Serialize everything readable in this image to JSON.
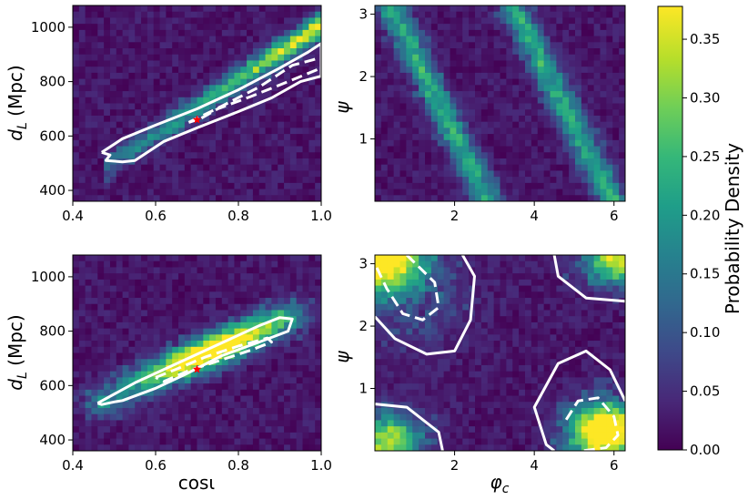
{
  "colors": {
    "background": "#440154",
    "contour": "#ffffff",
    "injection_marker": "#ff0000",
    "colormap": [
      "#440154",
      "#482878",
      "#3e4989",
      "#31688e",
      "#26828e",
      "#1f9e89",
      "#35b779",
      "#6ece58",
      "#b5de2b",
      "#fde725"
    ]
  },
  "chart_data": [
    {
      "id": "dl_vs_cosi_top",
      "type": "heatmap",
      "xlabel": "",
      "ylabel": "d_L (Mpc)",
      "xlim": [
        0.4,
        1.0
      ],
      "ylim": [
        360,
        1080
      ],
      "xticks": [
        "0.4",
        "0.6",
        "0.8",
        "1.0"
      ],
      "xtick_values": [
        0.4,
        0.6,
        0.8,
        1.0
      ],
      "yticks": [
        "400",
        "600",
        "800",
        "1000"
      ],
      "ytick_values": [
        400,
        600,
        800,
        1000
      ],
      "marker": {
        "x": 0.7,
        "y": 660
      },
      "contours": [
        {
          "style": "solid",
          "points": [
            [
              0.47,
              540
            ],
            [
              0.52,
              590
            ],
            [
              0.6,
              640
            ],
            [
              0.7,
              700
            ],
            [
              0.8,
              770
            ],
            [
              0.9,
              850
            ],
            [
              0.97,
              910
            ],
            [
              1.0,
              940
            ],
            [
              1.0,
              820
            ],
            [
              0.95,
              800
            ],
            [
              0.88,
              740
            ],
            [
              0.8,
              690
            ],
            [
              0.7,
              630
            ],
            [
              0.62,
              580
            ],
            [
              0.55,
              510
            ],
            [
              0.52,
              505
            ],
            [
              0.48,
              510
            ],
            [
              0.49,
              530
            ],
            [
              0.47,
              540
            ]
          ]
        },
        {
          "style": "dashed",
          "points": [
            [
              0.68,
              650
            ],
            [
              0.76,
              710
            ],
            [
              0.85,
              780
            ],
            [
              0.93,
              860
            ],
            [
              0.98,
              880
            ],
            [
              1.0,
              890
            ],
            [
              1.0,
              850
            ],
            [
              0.92,
              800
            ],
            [
              0.83,
              745
            ],
            [
              0.75,
              700
            ],
            [
              0.71,
              665
            ],
            [
              0.68,
              650
            ]
          ]
        }
      ]
    },
    {
      "id": "psi_vs_phic_top",
      "type": "heatmap",
      "xlabel": "",
      "ylabel": "ψ",
      "xlim": [
        0.0,
        6.28
      ],
      "ylim": [
        0.0,
        3.14
      ],
      "xticks": [
        "2",
        "4",
        "6"
      ],
      "xtick_values": [
        2,
        4,
        6
      ],
      "yticks": [
        "1",
        "2",
        "3"
      ],
      "ytick_values": [
        1,
        2,
        3
      ],
      "contours": []
    },
    {
      "id": "dl_vs_cosi_bottom",
      "type": "heatmap",
      "xlabel": "cosι",
      "ylabel": "d_L (Mpc)",
      "xlim": [
        0.4,
        1.0
      ],
      "ylim": [
        360,
        1080
      ],
      "xticks": [
        "0.4",
        "0.6",
        "0.8",
        "1.0"
      ],
      "xtick_values": [
        0.4,
        0.6,
        0.8,
        1.0
      ],
      "yticks": [
        "400",
        "600",
        "800",
        "1000"
      ],
      "ytick_values": [
        400,
        600,
        800,
        1000
      ],
      "marker": {
        "x": 0.7,
        "y": 660
      },
      "contours": [
        {
          "style": "solid",
          "points": [
            [
              0.46,
              535
            ],
            [
              0.55,
              610
            ],
            [
              0.65,
              680
            ],
            [
              0.75,
              750
            ],
            [
              0.85,
              820
            ],
            [
              0.9,
              850
            ],
            [
              0.93,
              845
            ],
            [
              0.92,
              800
            ],
            [
              0.85,
              760
            ],
            [
              0.76,
              710
            ],
            [
              0.67,
              640
            ],
            [
              0.6,
              590
            ],
            [
              0.52,
              545
            ],
            [
              0.5,
              540
            ],
            [
              0.47,
              530
            ],
            [
              0.46,
              535
            ]
          ]
        },
        {
          "style": "dashed",
          "points": [
            [
              0.6,
              630
            ],
            [
              0.65,
              660
            ],
            [
              0.72,
              705
            ],
            [
              0.8,
              745
            ],
            [
              0.87,
              775
            ],
            [
              0.88,
              760
            ],
            [
              0.83,
              730
            ],
            [
              0.75,
              690
            ],
            [
              0.68,
              655
            ],
            [
              0.62,
              615
            ],
            [
              0.6,
              630
            ]
          ]
        }
      ]
    },
    {
      "id": "psi_vs_phic_bottom",
      "type": "heatmap",
      "xlabel": "φ_c",
      "ylabel": "ψ",
      "xlim": [
        0.0,
        6.28
      ],
      "ylim": [
        0.0,
        3.14
      ],
      "xticks": [
        "2",
        "4",
        "6"
      ],
      "xtick_values": [
        2,
        4,
        6
      ],
      "yticks": [
        "1",
        "2",
        "3"
      ],
      "ytick_values": [
        1,
        2,
        3
      ],
      "contours": [
        {
          "style": "solid",
          "points": [
            [
              0.0,
              2.15
            ],
            [
              0.5,
              1.8
            ],
            [
              1.3,
              1.55
            ],
            [
              2.0,
              1.6
            ],
            [
              2.4,
              2.1
            ],
            [
              2.5,
              2.8
            ],
            [
              2.2,
              3.14
            ]
          ]
        },
        {
          "style": "dashed",
          "points": [
            [
              0.8,
              3.14
            ],
            [
              1.5,
              2.7
            ],
            [
              1.6,
              2.3
            ],
            [
              1.2,
              2.1
            ],
            [
              0.7,
              2.2
            ],
            [
              0.3,
              2.6
            ],
            [
              0.0,
              3.0
            ]
          ]
        },
        {
          "style": "solid",
          "points": [
            [
              4.5,
              3.14
            ],
            [
              4.6,
              2.8
            ],
            [
              5.3,
              2.45
            ],
            [
              6.28,
              2.4
            ]
          ]
        },
        {
          "style": "solid",
          "points": [
            [
              6.28,
              0.8
            ],
            [
              5.9,
              1.3
            ],
            [
              5.3,
              1.6
            ],
            [
              4.6,
              1.4
            ],
            [
              4.0,
              0.7
            ],
            [
              4.3,
              0.1
            ],
            [
              4.5,
              0.0
            ]
          ]
        },
        {
          "style": "dashed",
          "points": [
            [
              4.8,
              0.5
            ],
            [
              5.1,
              0.8
            ],
            [
              5.6,
              0.85
            ],
            [
              6.0,
              0.55
            ],
            [
              6.1,
              0.25
            ],
            [
              5.8,
              0.05
            ],
            [
              5.2,
              0.0
            ]
          ]
        },
        {
          "style": "solid",
          "points": [
            [
              0.0,
              0.75
            ],
            [
              0.8,
              0.7
            ],
            [
              1.6,
              0.3
            ],
            [
              1.7,
              0.0
            ]
          ]
        }
      ]
    }
  ],
  "colorbar": {
    "label": "Probability Density",
    "min": 0.0,
    "max": 0.378,
    "ticks": [
      "0.00",
      "0.05",
      "0.10",
      "0.15",
      "0.20",
      "0.25",
      "0.30",
      "0.35"
    ],
    "tick_values": [
      0.0,
      0.05,
      0.1,
      0.15,
      0.2,
      0.25,
      0.3,
      0.35
    ]
  }
}
